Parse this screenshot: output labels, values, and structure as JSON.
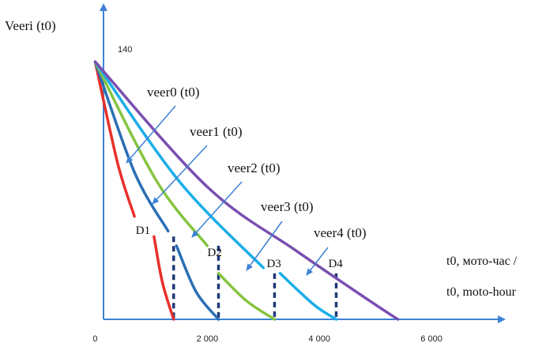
{
  "chart_data": {
    "type": "line",
    "ylabel": "Veeri (t0)",
    "xlabel_line1": "t0, мото-час /",
    "xlabel_line2": "t0, moto-hour",
    "y_start_label": "140",
    "x_tick_labels": [
      "0",
      "2 000",
      "4 000",
      "6 000"
    ],
    "x_ticks": [
      0,
      2000,
      4000,
      6000
    ],
    "xlim": [
      -500,
      7000
    ],
    "ylim": [
      0,
      165
    ],
    "grid": false,
    "series": [
      {
        "name": "veer0 (t0)",
        "color": "#e8302a",
        "points": [
          [
            0,
            140
          ],
          [
            400,
            85
          ],
          [
            700,
            56
          ]
        ],
        "reset_points": [
          [
            1050,
            45
          ],
          [
            1200,
            20
          ],
          [
            1400,
            0
          ]
        ]
      },
      {
        "name": "veer1 (t0)",
        "color": "#2a6fb3",
        "points": [
          [
            0,
            140
          ],
          [
            700,
            80
          ],
          [
            1300,
            48
          ]
        ],
        "reset_points": [
          [
            1450,
            40
          ],
          [
            1800,
            15
          ],
          [
            2200,
            0
          ]
        ]
      },
      {
        "name": "veer2 (t0)",
        "color": "#86c440",
        "points": [
          [
            0,
            140
          ],
          [
            1100,
            75
          ],
          [
            2000,
            40
          ]
        ],
        "reset_points": [
          [
            2200,
            25
          ],
          [
            2700,
            10
          ],
          [
            3200,
            0
          ]
        ]
      },
      {
        "name": "veer3 (t0)",
        "color": "#1aaee8",
        "points": [
          [
            0,
            140
          ],
          [
            1500,
            75
          ],
          [
            3000,
            28
          ]
        ],
        "reset_points": [
          [
            3300,
            25
          ],
          [
            3900,
            8
          ],
          [
            4300,
            0
          ]
        ]
      },
      {
        "name": "veer4 (t0)",
        "color": "#7a4fb0",
        "points": [
          [
            0,
            140
          ],
          [
            2000,
            72
          ],
          [
            3600,
            37
          ],
          [
            4900,
            10
          ],
          [
            5400,
            0
          ]
        ],
        "reset_points": []
      }
    ],
    "boundaries": [
      {
        "label": "D1",
        "x": 1400
      },
      {
        "label": "D2",
        "x": 2200
      },
      {
        "label": "D3",
        "x": 3200
      },
      {
        "label": "D4",
        "x": 4300
      }
    ]
  }
}
